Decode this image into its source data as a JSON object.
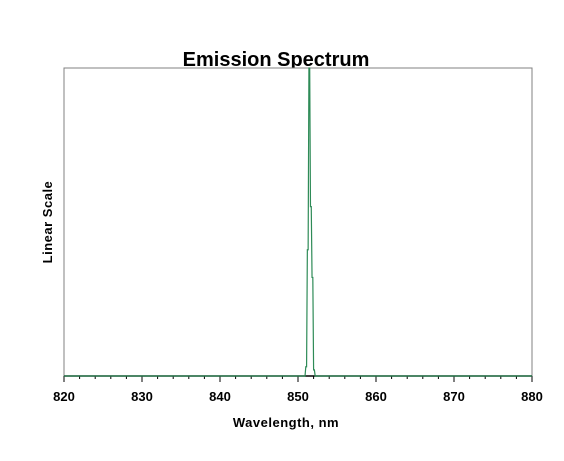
{
  "chart_data": {
    "type": "line",
    "title": "Emission Spectrum",
    "xlabel": "Wavelength, nm",
    "ylabel": "Linear Scale",
    "xlim": [
      820,
      880
    ],
    "ylim": [
      0,
      1
    ],
    "x_ticks": [
      "820",
      "830",
      "840",
      "850",
      "860",
      "870",
      "880"
    ],
    "y_ticks": [],
    "grid": false,
    "line_color": "#2e8b57",
    "series": [
      {
        "x": [
          820,
          829.9,
          830,
          850.9,
          851.0,
          851.1,
          851.2,
          851.3,
          851.4,
          851.5,
          851.6,
          851.7,
          851.8,
          851.9,
          852.0,
          852.1,
          852.2,
          852.3,
          870,
          870.1,
          880
        ],
        "y": [
          0,
          0,
          0,
          0,
          0.03,
          0.03,
          0.41,
          0.41,
          1.0,
          1.0,
          0.55,
          0.55,
          0.32,
          0.32,
          0.02,
          0.02,
          0,
          0,
          0,
          0,
          0
        ]
      }
    ]
  }
}
